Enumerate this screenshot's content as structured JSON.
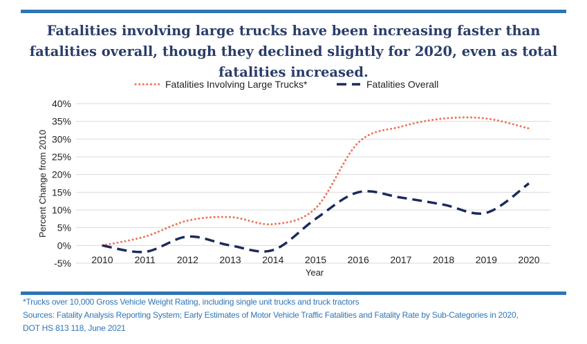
{
  "title": "Fatalities involving large trucks have been increasing faster than fatalities overall, though they declined slightly for 2020, even as total fatalities increased.",
  "colors": {
    "trucks": "#f0735a",
    "overall": "#1b2a5c",
    "accent": "#2e75b6"
  },
  "chart_data": {
    "type": "line",
    "xlabel": "Year",
    "ylabel": "Percent Change from 2010",
    "x": [
      "2010",
      "2011",
      "2012",
      "2013",
      "2014",
      "2015",
      "2016",
      "2017",
      "2018",
      "2019",
      "2020"
    ],
    "yticks": [
      "-5%",
      "0%",
      "5%",
      "10%",
      "15%",
      "20%",
      "25%",
      "30%",
      "35%",
      "40%"
    ],
    "ylim": [
      -5,
      40
    ],
    "grid": true,
    "legend": "top",
    "series": [
      {
        "name": "Fatalities Involving Large Trucks*",
        "style": "dotted",
        "values": [
          0,
          2.5,
          7,
          8,
          6,
          10.5,
          29,
          33.5,
          35.8,
          35.8,
          33
        ]
      },
      {
        "name": "Fatalities Overall",
        "style": "dashed",
        "values": [
          0,
          -1.8,
          2.5,
          0,
          -1.3,
          7.5,
          15,
          13.5,
          11.5,
          9.2,
          17.5
        ]
      }
    ]
  },
  "footnotes": {
    "note": "*Trucks over 10,000 Gross Vehicle Weight Rating, including single unit trucks and truck tractors",
    "sources1": "Sources: Fatality Analysis Reporting System; Early Estimates of Motor Vehicle Traffic Fatalities and Fatality Rate by Sub-Categories in 2020,",
    "sources2": "DOT HS 813 118, June 2021"
  }
}
